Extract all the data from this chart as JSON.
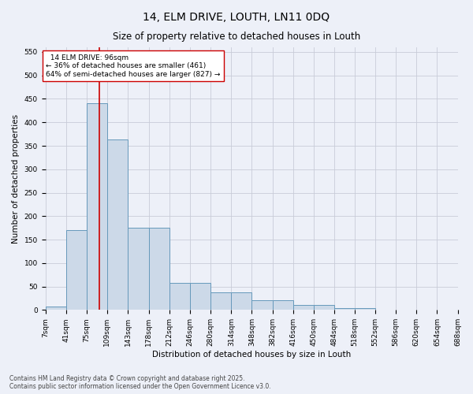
{
  "title": "14, ELM DRIVE, LOUTH, LN11 0DQ",
  "subtitle": "Size of property relative to detached houses in Louth",
  "xlabel": "Distribution of detached houses by size in Louth",
  "ylabel": "Number of detached properties",
  "categories": [
    "7sqm",
    "41sqm",
    "75sqm",
    "109sqm",
    "143sqm",
    "178sqm",
    "212sqm",
    "246sqm",
    "280sqm",
    "314sqm",
    "348sqm",
    "382sqm",
    "416sqm",
    "450sqm",
    "484sqm",
    "518sqm",
    "552sqm",
    "586sqm",
    "620sqm",
    "654sqm",
    "688sqm"
  ],
  "bar_heights": [
    7,
    170,
    440,
    363,
    175,
    175,
    57,
    57,
    37,
    37,
    20,
    20,
    10,
    10,
    4,
    4,
    1,
    1,
    1,
    1
  ],
  "bar_color": "#ccd9e8",
  "bar_edge_color": "#6699bb",
  "vline_color": "#cc0000",
  "property_size": 96,
  "annotation_title": "14 ELM DRIVE: 96sqm",
  "annotation_line1": "← 36% of detached houses are smaller (461)",
  "annotation_line2": "64% of semi-detached houses are larger (827) →",
  "ylim": [
    0,
    560
  ],
  "yticks": [
    0,
    50,
    100,
    150,
    200,
    250,
    300,
    350,
    400,
    450,
    500,
    550
  ],
  "background_color": "#edf0f8",
  "grid_color": "#c8ccd8",
  "footer_line1": "Contains HM Land Registry data © Crown copyright and database right 2025.",
  "footer_line2": "Contains public sector information licensed under the Open Government Licence v3.0.",
  "title_fontsize": 10,
  "subtitle_fontsize": 8.5,
  "xlabel_fontsize": 7.5,
  "ylabel_fontsize": 7.5,
  "tick_fontsize": 6.5,
  "annot_fontsize": 6.5,
  "footer_fontsize": 5.5
}
